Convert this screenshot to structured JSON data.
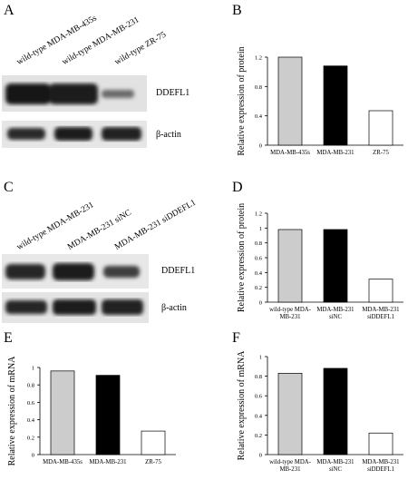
{
  "panels": {
    "A": {
      "letter": "A",
      "lanes": [
        "wild-type MDA-MB-435s",
        "wild-type MDA-MB-231",
        "wild-type ZR-75"
      ],
      "band_top": "DDEFL1",
      "band_bottom": "β-actin"
    },
    "C": {
      "letter": "C",
      "lanes": [
        "wild-type MDA-MB-231",
        "MDA-MB-231 siNC",
        "MDA-MB-231 siDDEFL1"
      ],
      "band_top": "DDEFL1",
      "band_bottom": "β-actin"
    },
    "B": {
      "letter": "B"
    },
    "D": {
      "letter": "D"
    },
    "E": {
      "letter": "E"
    },
    "F": {
      "letter": "F"
    }
  },
  "chart_data": [
    {
      "panel": "B",
      "type": "bar",
      "categories": [
        [
          "MDA-MB-435s"
        ],
        [
          "MDA-MB-231"
        ],
        [
          "ZR-75"
        ]
      ],
      "values": [
        1.2,
        1.08,
        0.47
      ],
      "bar_colors": [
        "#cccccc",
        "#000000",
        "#ffffff"
      ],
      "ylabel": "Relative expression of protein",
      "ylim": [
        0,
        1.2
      ],
      "yticks": [
        "0",
        "0.4",
        "0.8",
        "1.2"
      ],
      "ytick_values": [
        0,
        0.4,
        0.8,
        1.2
      ]
    },
    {
      "panel": "D",
      "type": "bar",
      "categories": [
        [
          "wild-type MDA-",
          "MB-231"
        ],
        [
          "MDA-MB-231",
          "siNC"
        ],
        [
          "MDA-MB-231",
          "siDDEFL1"
        ]
      ],
      "values": [
        0.98,
        0.98,
        0.31
      ],
      "bar_colors": [
        "#cccccc",
        "#000000",
        "#ffffff"
      ],
      "ylabel": "Relative expression of protein",
      "ylim": [
        0,
        1.2
      ],
      "yticks": [
        "0",
        "0.2",
        "0.4",
        "0.6",
        "0.8",
        "1",
        "1.2"
      ],
      "ytick_values": [
        0,
        0.2,
        0.4,
        0.6,
        0.8,
        1,
        1.2
      ]
    },
    {
      "panel": "E",
      "type": "bar",
      "categories": [
        [
          "MDA-MB-435s"
        ],
        [
          "MDA-MB-231"
        ],
        [
          "ZR-75"
        ]
      ],
      "values": [
        0.96,
        0.91,
        0.27
      ],
      "bar_colors": [
        "#cccccc",
        "#000000",
        "#ffffff"
      ],
      "ylabel": "Relative expression of mRNA",
      "ylim": [
        0,
        1
      ],
      "yticks": [
        "0",
        "0.2",
        "0.4",
        "0.6",
        "0.8",
        "1"
      ],
      "ytick_values": [
        0,
        0.2,
        0.4,
        0.6,
        0.8,
        1
      ]
    },
    {
      "panel": "F",
      "type": "bar",
      "categories": [
        [
          "wild-type MDA-",
          "MB-231"
        ],
        [
          "MDA-MB-231",
          "siNC"
        ],
        [
          "MDA-MB-231",
          "siDDEFL1"
        ]
      ],
      "values": [
        0.83,
        0.88,
        0.22
      ],
      "bar_colors": [
        "#cccccc",
        "#000000",
        "#ffffff"
      ],
      "ylabel": "Relative expression of mRNA",
      "ylim": [
        0,
        1
      ],
      "yticks": [
        "0",
        "0.2",
        "0.4",
        "0.6",
        "0.8",
        "1"
      ],
      "ytick_values": [
        0,
        0.2,
        0.4,
        0.6,
        0.8,
        1
      ]
    }
  ]
}
